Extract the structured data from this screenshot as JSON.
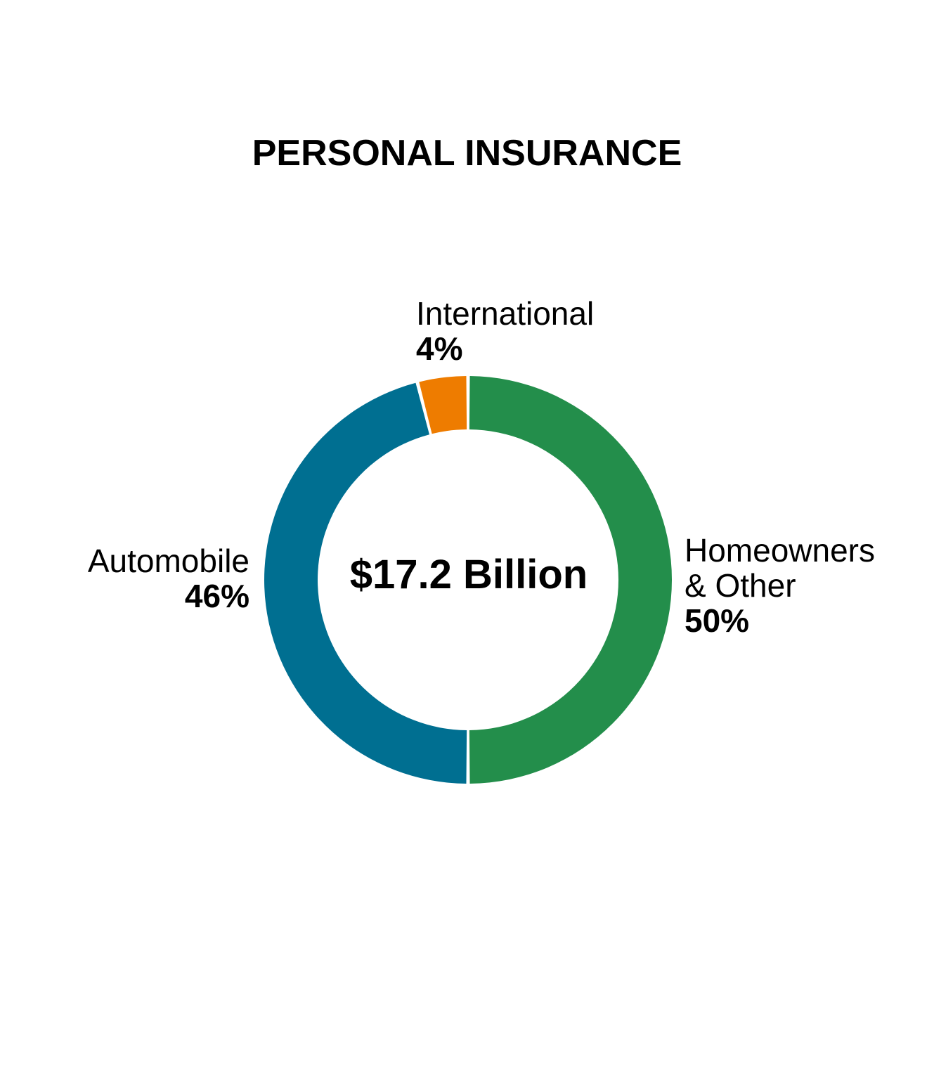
{
  "chart_data": {
    "type": "pie",
    "title": "PERSONAL INSURANCE",
    "center_label": "$17.2 Billion",
    "donut": true,
    "slices": [
      {
        "label": "Homeowners & Other",
        "label_lines": [
          "Homeowners",
          "& Other"
        ],
        "value_label": "50%",
        "value": 50,
        "color": "#238e4b"
      },
      {
        "label": "Automobile",
        "label_lines": [
          "Automobile"
        ],
        "value_label": "46%",
        "value": 46,
        "color": "#006f91"
      },
      {
        "label": "International",
        "label_lines": [
          "International"
        ],
        "value_label": "4%",
        "value": 4,
        "color": "#ee7c00"
      }
    ]
  }
}
